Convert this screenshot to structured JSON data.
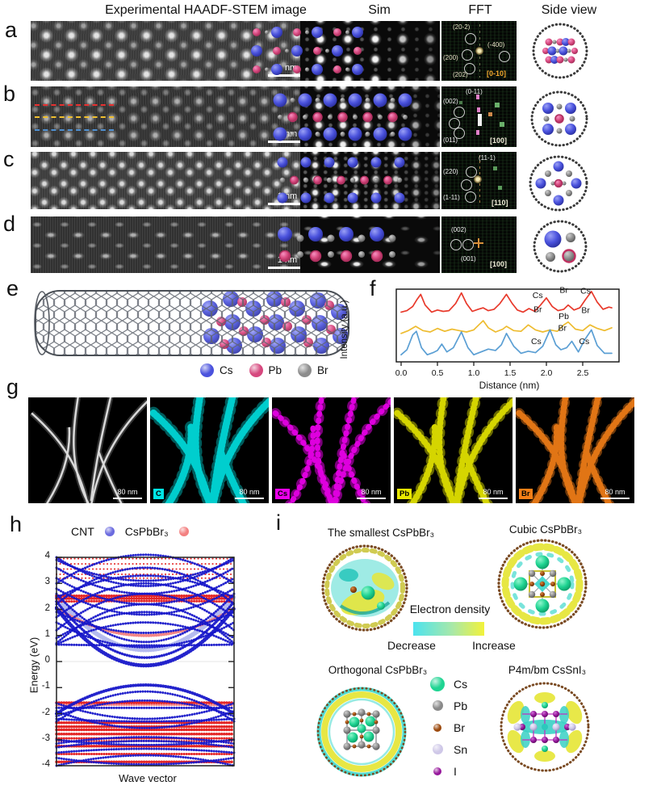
{
  "header": {
    "experimental": "Experimental HAADF-STEM image",
    "sim": "Sim",
    "fft": "FFT",
    "side_view": "Side view"
  },
  "panels": {
    "a": {
      "label": "a",
      "scale_bar": "1 nm",
      "fft_top": "(20-2)",
      "fft_right": "(-400)",
      "fft_left": "(200)",
      "fft_bottom": "(202)",
      "zone_axis": "[0-10]"
    },
    "b": {
      "label": "b",
      "scale_bar": "1 nm",
      "fft_top": "(0-11)",
      "fft_left": "(002)",
      "fft_bottom": "(011)",
      "zone_axis": "[100]"
    },
    "c": {
      "label": "c",
      "scale_bar": "1 nm",
      "fft_top": "(11-1)",
      "fft_left": "(220)",
      "fft_bottom": "(1-11)",
      "zone_axis": "[110]"
    },
    "d": {
      "label": "d",
      "scale_bar": "1 nm",
      "fft_top": "(002)",
      "fft_bottom": "(001)",
      "zone_axis": "[100]"
    },
    "e": {
      "label": "e",
      "legend": [
        {
          "name": "Cs",
          "color": "#4a52dd"
        },
        {
          "name": "Pb",
          "color": "#d6487e"
        },
        {
          "name": "Br",
          "color": "#8c8c8c"
        }
      ]
    },
    "f": {
      "label": "f"
    },
    "g": {
      "label": "g",
      "maps": [
        {
          "tag": "",
          "color": "",
          "scale_bar": "80 nm"
        },
        {
          "tag": "C",
          "color": "#00e5e5",
          "scale_bar": "80 nm"
        },
        {
          "tag": "Cs",
          "color": "#ea00ea",
          "scale_bar": "80 nm"
        },
        {
          "tag": "Pb",
          "color": "#e8e800",
          "scale_bar": "80 nm"
        },
        {
          "tag": "Br",
          "color": "#f57f17",
          "scale_bar": "80 nm"
        }
      ]
    },
    "h": {
      "label": "h"
    },
    "i": {
      "label": "i",
      "titles": {
        "smallest": "The smallest CsPbBr₃",
        "cubic": "Cubic CsPbBr₃",
        "orthogonal": "Orthogonal CsPbBr₃",
        "p4mbm": "P4m/bm CsSnI₃"
      },
      "colorbar": {
        "title": "Electron density",
        "left": "Decrease",
        "right": "Increase",
        "from": "#4ce3ef",
        "to": "#f2f23a"
      },
      "legend": [
        {
          "name": "Cs",
          "color": "#1fd492"
        },
        {
          "name": "Pb",
          "color": "#8a8a8a"
        },
        {
          "name": "Br",
          "color": "#9c4a0e"
        },
        {
          "name": "Sn",
          "color": "#cfc8e8"
        },
        {
          "name": "I",
          "color": "#97189c"
        }
      ]
    }
  },
  "chart_data": [
    {
      "id": "intensity-profiles",
      "type": "line",
      "title": "",
      "xlabel": "Distance (nm)",
      "ylabel": "Intensity (a.u.)",
      "xlim": [
        0,
        2.9
      ],
      "xticks": [
        0.0,
        0.5,
        1.0,
        1.5,
        2.0,
        2.5
      ],
      "grid": false,
      "note": "y values are normalized intensity (a.u.), 3 offset line profiles along red/yellow/blue dashed lines of panel b",
      "series": [
        {
          "name": "red-profile",
          "color": "#e8392b",
          "x": [
            0,
            0.08,
            0.16,
            0.22,
            0.27,
            0.33,
            0.42,
            0.5,
            0.58,
            0.66,
            0.75,
            0.83,
            0.9,
            0.98,
            1.06,
            1.13,
            1.2,
            1.28,
            1.36,
            1.45,
            1.53,
            1.6,
            1.68,
            1.76,
            1.84,
            1.92,
            2.0,
            2.08,
            2.16,
            2.24,
            2.3,
            2.38,
            2.46,
            2.54,
            2.62,
            2.7,
            2.78,
            2.86,
            2.9
          ],
          "y": [
            0.7,
            0.72,
            0.78,
            0.88,
            0.95,
            0.8,
            0.7,
            0.73,
            0.71,
            0.72,
            0.82,
            0.97,
            0.82,
            0.71,
            0.74,
            0.76,
            0.72,
            0.74,
            0.82,
            0.95,
            0.82,
            0.73,
            0.7,
            0.75,
            0.71,
            0.8,
            0.9,
            0.78,
            0.72,
            0.74,
            0.8,
            0.73,
            0.76,
            0.88,
            0.99,
            0.84,
            0.74,
            0.77,
            0.76
          ]
        },
        {
          "name": "yellow-profile",
          "color": "#eebc30",
          "x": [
            0,
            0.1,
            0.2,
            0.3,
            0.4,
            0.5,
            0.6,
            0.7,
            0.8,
            0.9,
            1.0,
            1.07,
            1.13,
            1.2,
            1.3,
            1.4,
            1.45,
            1.55,
            1.65,
            1.75,
            1.85,
            1.95,
            2.05,
            2.15,
            2.24,
            2.3,
            2.4,
            2.5,
            2.6,
            2.7,
            2.8,
            2.9
          ],
          "y": [
            0.4,
            0.44,
            0.5,
            0.44,
            0.42,
            0.47,
            0.43,
            0.46,
            0.44,
            0.42,
            0.45,
            0.52,
            0.58,
            0.48,
            0.42,
            0.46,
            0.5,
            0.44,
            0.43,
            0.52,
            0.45,
            0.42,
            0.45,
            0.43,
            0.52,
            0.56,
            0.46,
            0.44,
            0.52,
            0.47,
            0.44,
            0.48
          ]
        },
        {
          "name": "blue-profile",
          "color": "#5b9fd4",
          "x": [
            0,
            0.08,
            0.16,
            0.21,
            0.28,
            0.36,
            0.44,
            0.5,
            0.56,
            0.63,
            0.72,
            0.83,
            0.92,
            1.0,
            1.1,
            1.2,
            1.3,
            1.38,
            1.45,
            1.55,
            1.65,
            1.75,
            1.85,
            1.95,
            2.05,
            2.13,
            2.2,
            2.28,
            2.35,
            2.44,
            2.52,
            2.62,
            2.7,
            2.8,
            2.9
          ],
          "y": [
            0.1,
            0.17,
            0.38,
            0.43,
            0.2,
            0.1,
            0.13,
            0.16,
            0.25,
            0.14,
            0.2,
            0.42,
            0.2,
            0.1,
            0.14,
            0.18,
            0.16,
            0.24,
            0.4,
            0.22,
            0.12,
            0.15,
            0.13,
            0.22,
            0.45,
            0.24,
            0.17,
            0.2,
            0.29,
            0.14,
            0.3,
            0.45,
            0.23,
            0.12,
            0.12
          ]
        }
      ],
      "annotations": [
        {
          "text": "Cs",
          "x": 1.88,
          "yn": 0.9
        },
        {
          "text": "Br",
          "x": 2.24,
          "yn": 0.97
        },
        {
          "text": "Cs",
          "x": 2.54,
          "yn": 0.96
        },
        {
          "text": "Br",
          "x": 1.88,
          "yn": 0.7
        },
        {
          "text": "Pb",
          "x": 2.24,
          "yn": 0.6
        },
        {
          "text": "Br",
          "x": 2.54,
          "yn": 0.69
        },
        {
          "text": "Cs",
          "x": 1.86,
          "yn": 0.25
        },
        {
          "text": "Br",
          "x": 2.22,
          "yn": 0.44
        },
        {
          "text": "Cs",
          "x": 2.52,
          "yn": 0.25
        }
      ]
    },
    {
      "id": "band-structure",
      "type": "scatter",
      "xlabel": "Wave vector",
      "ylabel": "Energy (eV)",
      "ylim": [
        -4,
        4
      ],
      "yticks": [
        4,
        3,
        2,
        1,
        0,
        -1,
        -2,
        -3,
        -4
      ],
      "legend": [
        {
          "name": "CNT",
          "color": "#6b6bdf"
        },
        {
          "name": "CsPbBr₃",
          "color": "#f38080"
        }
      ],
      "colors": {
        "b": "#1717c9",
        "lb": "#959ee8",
        "r": "#e31b1b",
        "s": "#f28080"
      },
      "note": "bands given as [species, E(left edge), E(mid), E(right edge), dot size]; b=CNT blue, r/s=CsPbBr3 red/salmon, lb=hybridized faded blue; band gap ~0 to -0.9 eV",
      "bands": [
        [
          "lb",
          2.5,
          0.45,
          2.5,
          6
        ],
        [
          "s",
          2.05,
          1.0,
          2.05,
          4
        ],
        [
          "s",
          -1.68,
          -1.66,
          -1.68,
          3
        ],
        [
          "r",
          2.42,
          2.42,
          2.42,
          3.5
        ],
        [
          "r",
          2.52,
          2.52,
          2.52,
          3.5
        ],
        [
          "r",
          2.3,
          2.32,
          2.3,
          3
        ],
        [
          "r",
          3.2,
          3.2,
          3.2,
          2
        ],
        [
          "r",
          3.35,
          3.35,
          3.35,
          2
        ],
        [
          "r",
          3.55,
          3.55,
          3.55,
          2
        ],
        [
          "r",
          3.75,
          3.75,
          3.75,
          2
        ],
        [
          "r",
          3.95,
          3.95,
          3.95,
          2
        ],
        [
          "r",
          -1.58,
          -1.58,
          -1.58,
          3.5
        ],
        [
          "r",
          -2.35,
          -2.35,
          -2.35,
          3.5
        ],
        [
          "r",
          -2.5,
          -2.5,
          -2.5,
          3.5
        ],
        [
          "r",
          -2.62,
          -2.62,
          -2.62,
          3.5
        ],
        [
          "r",
          -2.78,
          -2.78,
          -2.78,
          3.5
        ],
        [
          "r",
          -2.95,
          -2.95,
          -2.95,
          3
        ],
        [
          "r",
          -3.05,
          -3.05,
          -3.05,
          2.5
        ],
        [
          "r",
          -3.25,
          -3.25,
          -3.25,
          3.5
        ],
        [
          "r",
          -3.55,
          -3.55,
          -3.55,
          3
        ],
        [
          "r",
          -3.85,
          -3.85,
          -3.85,
          3.5
        ],
        [
          "b",
          2.05,
          -0.15,
          2.05,
          5
        ],
        [
          "b",
          2.3,
          0.15,
          2.3,
          3.5
        ],
        [
          "b",
          0.7,
          2.2,
          0.7,
          3
        ],
        [
          "b",
          0.65,
          1.5,
          0.65,
          3
        ],
        [
          "b",
          1.2,
          2.6,
          1.2,
          3
        ],
        [
          "b",
          1.7,
          3.0,
          1.7,
          3
        ],
        [
          "b",
          2.2,
          3.6,
          2.2,
          3
        ],
        [
          "b",
          2.8,
          1.8,
          2.8,
          3
        ],
        [
          "b",
          3.2,
          2.2,
          3.2,
          3
        ],
        [
          "b",
          3.6,
          2.6,
          3.6,
          3
        ],
        [
          "b",
          4.0,
          2.9,
          4.0,
          3
        ],
        [
          "b",
          3.0,
          4.1,
          3.0,
          3
        ],
        [
          "b",
          2.45,
          3.3,
          2.45,
          3
        ],
        [
          "b",
          1.9,
          1.1,
          1.9,
          3
        ],
        [
          "b",
          0.9,
          1.9,
          0.9,
          3
        ],
        [
          "b",
          3.9,
          3.1,
          3.9,
          3
        ],
        [
          "b",
          1.5,
          0.55,
          1.5,
          3
        ],
        [
          "b",
          2.6,
          0.75,
          2.6,
          3
        ],
        [
          "b",
          0.65,
          0.62,
          0.65,
          3
        ],
        [
          "b",
          -2.0,
          -0.9,
          -2.0,
          4
        ],
        [
          "b",
          -2.3,
          -1.15,
          -2.3,
          3
        ],
        [
          "b",
          -1.6,
          -2.2,
          -1.6,
          3
        ],
        [
          "b",
          -1.78,
          -1.78,
          -1.78,
          3
        ],
        [
          "b",
          -1.9,
          -2.55,
          -1.9,
          3
        ],
        [
          "b",
          -2.1,
          -1.5,
          -2.1,
          3
        ],
        [
          "b",
          -3.0,
          -3.2,
          -3.0,
          3
        ],
        [
          "b",
          -3.15,
          -2.9,
          -3.15,
          3
        ],
        [
          "b",
          -3.5,
          -3.35,
          -3.5,
          3
        ],
        [
          "b",
          -3.7,
          -3.95,
          -3.7,
          3
        ],
        [
          "b",
          -4.0,
          -3.6,
          -4.0,
          3
        ],
        [
          "b",
          -3.3,
          -3.05,
          -3.3,
          3
        ],
        [
          "b",
          -2.2,
          -2.3,
          -2.2,
          3
        ]
      ]
    }
  ]
}
